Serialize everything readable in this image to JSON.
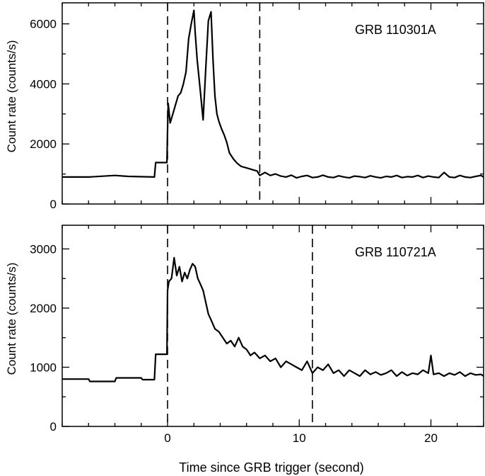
{
  "chart_data": [
    {
      "type": "line",
      "title": "",
      "annotation": "GRB 110301A",
      "xlabel": "",
      "ylabel": "Count rate (counts/s)",
      "xlim": [
        -8,
        24
      ],
      "ylim": [
        0,
        6700
      ],
      "yticks": [
        0,
        2000,
        4000,
        6000
      ],
      "xticks": [
        0,
        10,
        20
      ],
      "xtick_labels_shown": false,
      "grid": false,
      "vlines": [
        0,
        7
      ],
      "series": [
        {
          "name": "GRB 110301A",
          "x": [
            -8.0,
            -6.0,
            -4.0,
            -3.0,
            -1.0,
            -0.9,
            -0.05,
            0.0,
            0.05,
            0.2,
            0.4,
            0.6,
            0.8,
            1.0,
            1.2,
            1.4,
            1.6,
            1.8,
            2.0,
            2.1,
            2.25,
            2.4,
            2.5,
            2.7,
            2.9,
            3.1,
            3.3,
            3.45,
            3.6,
            3.75,
            3.9,
            4.1,
            4.3,
            4.5,
            4.7,
            5.0,
            5.3,
            5.6,
            6.0,
            6.4,
            6.8,
            7.0,
            7.4,
            7.8,
            8.2,
            8.6,
            9.0,
            9.4,
            9.8,
            10.2,
            10.6,
            11.0,
            11.4,
            11.8,
            12.2,
            12.6,
            13.0,
            13.4,
            13.8,
            14.2,
            14.6,
            15.0,
            15.4,
            15.8,
            16.2,
            16.6,
            17.0,
            17.4,
            17.8,
            18.2,
            18.6,
            19.0,
            19.4,
            19.8,
            20.2,
            20.6,
            21.0,
            21.4,
            21.8,
            22.2,
            22.6,
            23.0,
            23.4,
            23.8,
            24.0
          ],
          "y": [
            900,
            900,
            950,
            920,
            900,
            1380,
            1380,
            2500,
            3350,
            2700,
            3000,
            3300,
            3600,
            3700,
            4000,
            4400,
            5500,
            6000,
            6450,
            5700,
            4800,
            4150,
            3700,
            2800,
            4500,
            6100,
            6400,
            4800,
            3600,
            3000,
            2750,
            2500,
            2300,
            2050,
            1700,
            1500,
            1350,
            1250,
            1200,
            1150,
            1100,
            950,
            1050,
            950,
            1000,
            930,
            900,
            960,
            870,
            920,
            950,
            880,
            900,
            960,
            900,
            880,
            940,
            900,
            870,
            930,
            910,
            880,
            940,
            900,
            870,
            920,
            900,
            950,
            880,
            910,
            900,
            950,
            880,
            930,
            900,
            880,
            1050,
            900,
            880,
            950,
            900,
            880,
            920,
            950,
            900
          ]
        }
      ]
    },
    {
      "type": "line",
      "title": "",
      "annotation": "GRB 110721A",
      "xlabel": "Time since GRB trigger (second)",
      "ylabel": "Count rate (counts/s)",
      "xlim": [
        -8,
        24
      ],
      "ylim": [
        0,
        3400
      ],
      "yticks": [
        0,
        1000,
        2000,
        3000
      ],
      "xticks": [
        0,
        10,
        20
      ],
      "xtick_labels_shown": true,
      "grid": false,
      "vlines": [
        0,
        11
      ],
      "series": [
        {
          "name": "GRB 110721A",
          "x": [
            -8.0,
            -6.0,
            -5.9,
            -4.0,
            -3.9,
            -2.0,
            -1.9,
            -1.0,
            -0.9,
            -0.05,
            0.0,
            0.1,
            0.3,
            0.5,
            0.7,
            0.9,
            1.1,
            1.3,
            1.5,
            1.7,
            1.9,
            2.1,
            2.3,
            2.5,
            2.7,
            2.9,
            3.1,
            3.3,
            3.6,
            3.9,
            4.2,
            4.5,
            4.8,
            5.1,
            5.4,
            5.7,
            6.0,
            6.3,
            6.6,
            7.0,
            7.4,
            7.8,
            8.2,
            8.6,
            9.0,
            9.4,
            9.8,
            10.2,
            10.6,
            11.0,
            11.4,
            11.8,
            12.2,
            12.6,
            13.0,
            13.4,
            13.8,
            14.2,
            14.6,
            15.0,
            15.4,
            15.8,
            16.2,
            16.6,
            17.0,
            17.4,
            17.8,
            18.2,
            18.6,
            19.0,
            19.4,
            19.8,
            20.0,
            20.2,
            20.6,
            21.0,
            21.4,
            21.8,
            22.2,
            22.6,
            23.0,
            23.4,
            23.8,
            24.0
          ],
          "y": [
            800,
            800,
            760,
            760,
            820,
            820,
            790,
            790,
            1220,
            1220,
            2300,
            2450,
            2500,
            2850,
            2550,
            2700,
            2450,
            2600,
            2500,
            2650,
            2750,
            2700,
            2500,
            2400,
            2300,
            2100,
            1900,
            1800,
            1650,
            1600,
            1500,
            1400,
            1450,
            1350,
            1500,
            1350,
            1300,
            1200,
            1250,
            1150,
            1200,
            1100,
            1150,
            1000,
            1100,
            1050,
            1000,
            950,
            1100,
            900,
            1000,
            950,
            1050,
            900,
            950,
            850,
            950,
            900,
            850,
            950,
            880,
            920,
            870,
            900,
            950,
            850,
            920,
            860,
            900,
            880,
            950,
            900,
            1200,
            880,
            900,
            850,
            900,
            870,
            920,
            850,
            900,
            870,
            880,
            850
          ]
        }
      ]
    }
  ]
}
